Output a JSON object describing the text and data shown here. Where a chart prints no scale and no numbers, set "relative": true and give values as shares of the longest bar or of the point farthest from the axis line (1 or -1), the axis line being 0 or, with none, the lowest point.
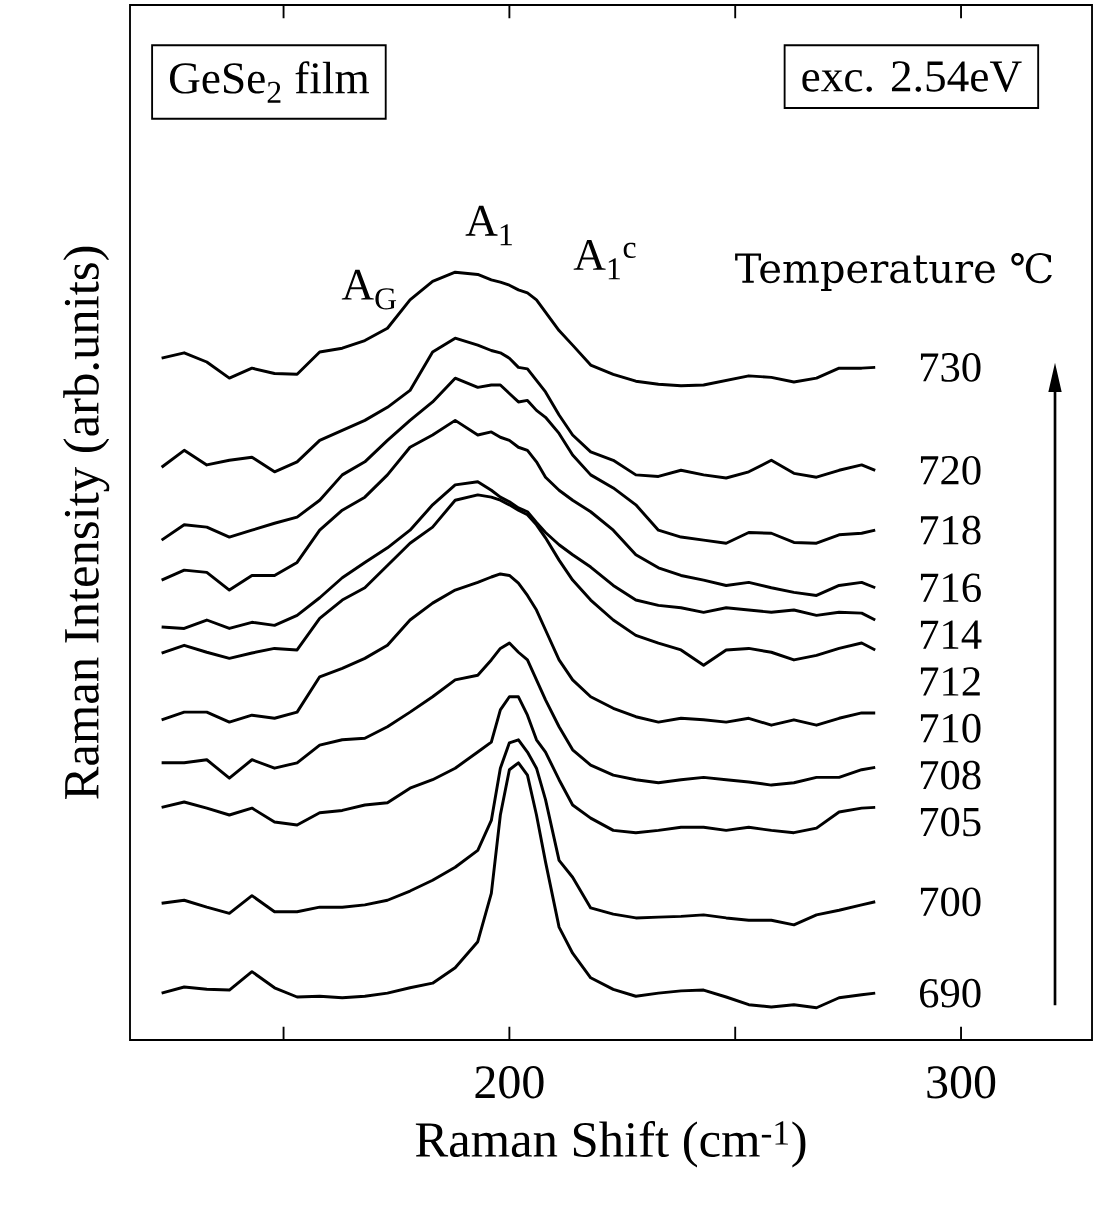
{
  "chart_data": {
    "type": "line",
    "relative": true,
    "xlabel": "Raman Shift (cm$^{-1}$)",
    "ylabel": "Raman Intensity (arb.units)",
    "legend_title": "Temperature ℃",
    "line_style": "solid",
    "xlim": [
      116,
      329
    ],
    "xticks": [
      {
        "value": 150,
        "label": null
      },
      200,
      {
        "value": 250,
        "label": null
      },
      300
    ],
    "annotations": [
      "GeSe$_{2}$ film",
      "exc. 2.54eV",
      "A$_{G}$",
      "A$_{1}$",
      "A$_{1}$$^{c}$"
    ],
    "x": [
      123,
      128,
      133,
      138,
      143,
      148,
      153,
      158,
      163,
      168,
      173,
      178,
      183,
      188,
      193,
      196,
      198,
      200,
      202,
      204,
      206,
      208,
      211,
      214,
      218,
      223,
      228,
      233,
      238,
      243,
      248,
      253,
      258,
      263,
      268,
      273,
      278,
      281
    ],
    "series": [
      {
        "name": "730",
        "color": "#000000",
        "values": [
          0.888,
          0.895,
          0.883,
          0.862,
          0.875,
          0.868,
          0.867,
          0.896,
          0.901,
          0.911,
          0.927,
          0.964,
          0.988,
          1.0,
          0.997,
          0.99,
          0.987,
          0.983,
          0.977,
          0.973,
          0.964,
          0.948,
          0.924,
          0.905,
          0.879,
          0.867,
          0.858,
          0.854,
          0.852,
          0.853,
          0.859,
          0.865,
          0.863,
          0.857,
          0.862,
          0.875,
          0.875,
          0.876
        ]
      },
      {
        "name": "720",
        "color": "#000000",
        "values": [
          0.746,
          0.768,
          0.749,
          0.755,
          0.759,
          0.74,
          0.753,
          0.781,
          0.794,
          0.807,
          0.824,
          0.846,
          0.896,
          0.914,
          0.905,
          0.898,
          0.895,
          0.888,
          0.876,
          0.874,
          0.859,
          0.844,
          0.814,
          0.788,
          0.766,
          0.755,
          0.736,
          0.734,
          0.742,
          0.736,
          0.732,
          0.74,
          0.755,
          0.738,
          0.733,
          0.742,
          0.749,
          0.742
        ]
      },
      {
        "name": "718",
        "color": "#000000",
        "values": [
          0.651,
          0.671,
          0.668,
          0.655,
          0.664,
          0.673,
          0.681,
          0.703,
          0.736,
          0.753,
          0.781,
          0.807,
          0.831,
          0.862,
          0.85,
          0.853,
          0.853,
          0.842,
          0.831,
          0.833,
          0.82,
          0.811,
          0.79,
          0.762,
          0.736,
          0.719,
          0.697,
          0.664,
          0.655,
          0.651,
          0.647,
          0.661,
          0.66,
          0.648,
          0.647,
          0.658,
          0.66,
          0.664
        ]
      },
      {
        "name": "716",
        "color": "#000000",
        "values": [
          0.599,
          0.612,
          0.609,
          0.586,
          0.605,
          0.605,
          0.622,
          0.664,
          0.69,
          0.707,
          0.736,
          0.772,
          0.788,
          0.807,
          0.788,
          0.792,
          0.785,
          0.781,
          0.772,
          0.768,
          0.753,
          0.733,
          0.716,
          0.703,
          0.688,
          0.664,
          0.632,
          0.615,
          0.605,
          0.599,
          0.592,
          0.596,
          0.589,
          0.583,
          0.579,
          0.592,
          0.596,
          0.589
        ]
      },
      {
        "name": "714",
        "color": "#000000",
        "values": [
          0.538,
          0.536,
          0.547,
          0.536,
          0.544,
          0.54,
          0.553,
          0.576,
          0.602,
          0.622,
          0.641,
          0.664,
          0.697,
          0.723,
          0.727,
          0.716,
          0.707,
          0.701,
          0.693,
          0.688,
          0.674,
          0.661,
          0.645,
          0.632,
          0.616,
          0.592,
          0.573,
          0.566,
          0.563,
          0.557,
          0.563,
          0.56,
          0.557,
          0.56,
          0.553,
          0.557,
          0.556,
          0.547
        ]
      },
      {
        "name": "712",
        "color": "#000000",
        "values": [
          0.504,
          0.514,
          0.505,
          0.497,
          0.504,
          0.51,
          0.508,
          0.549,
          0.573,
          0.589,
          0.618,
          0.647,
          0.668,
          0.703,
          0.71,
          0.707,
          0.703,
          0.697,
          0.69,
          0.684,
          0.671,
          0.654,
          0.625,
          0.599,
          0.573,
          0.547,
          0.527,
          0.517,
          0.508,
          0.488,
          0.508,
          0.51,
          0.505,
          0.495,
          0.501,
          0.51,
          0.517,
          0.508
        ]
      },
      {
        "name": "710",
        "color": "#000000",
        "values": [
          0.417,
          0.427,
          0.427,
          0.414,
          0.423,
          0.419,
          0.427,
          0.473,
          0.484,
          0.497,
          0.514,
          0.547,
          0.569,
          0.586,
          0.596,
          0.603,
          0.607,
          0.605,
          0.595,
          0.579,
          0.56,
          0.534,
          0.495,
          0.469,
          0.447,
          0.432,
          0.421,
          0.414,
          0.419,
          0.417,
          0.414,
          0.419,
          0.41,
          0.417,
          0.41,
          0.419,
          0.426,
          0.426
        ]
      },
      {
        "name": "708",
        "color": "#000000",
        "values": [
          0.361,
          0.361,
          0.365,
          0.341,
          0.365,
          0.354,
          0.361,
          0.384,
          0.391,
          0.393,
          0.408,
          0.427,
          0.447,
          0.469,
          0.475,
          0.495,
          0.51,
          0.517,
          0.505,
          0.495,
          0.469,
          0.443,
          0.408,
          0.378,
          0.358,
          0.345,
          0.339,
          0.335,
          0.339,
          0.342,
          0.339,
          0.336,
          0.332,
          0.335,
          0.342,
          0.342,
          0.352,
          0.355
        ]
      },
      {
        "name": "705",
        "color": "#000000",
        "values": [
          0.303,
          0.31,
          0.302,
          0.293,
          0.302,
          0.284,
          0.28,
          0.296,
          0.299,
          0.306,
          0.309,
          0.328,
          0.339,
          0.354,
          0.375,
          0.388,
          0.43,
          0.447,
          0.447,
          0.423,
          0.391,
          0.375,
          0.339,
          0.306,
          0.289,
          0.273,
          0.27,
          0.273,
          0.277,
          0.277,
          0.273,
          0.277,
          0.273,
          0.27,
          0.276,
          0.297,
          0.302,
          0.303
        ]
      },
      {
        "name": "700",
        "color": "#000000",
        "values": [
          0.178,
          0.182,
          0.173,
          0.165,
          0.188,
          0.167,
          0.167,
          0.173,
          0.173,
          0.176,
          0.182,
          0.194,
          0.208,
          0.225,
          0.247,
          0.286,
          0.354,
          0.387,
          0.391,
          0.375,
          0.354,
          0.313,
          0.234,
          0.212,
          0.172,
          0.164,
          0.159,
          0.16,
          0.161,
          0.163,
          0.159,
          0.156,
          0.156,
          0.15,
          0.163,
          0.169,
          0.176,
          0.18
        ]
      },
      {
        "name": "690",
        "color": "#000000",
        "values": [
          0.061,
          0.069,
          0.066,
          0.065,
          0.089,
          0.068,
          0.056,
          0.057,
          0.055,
          0.057,
          0.061,
          0.068,
          0.074,
          0.094,
          0.128,
          0.191,
          0.293,
          0.352,
          0.361,
          0.345,
          0.293,
          0.232,
          0.147,
          0.113,
          0.081,
          0.066,
          0.057,
          0.061,
          0.064,
          0.065,
          0.056,
          0.046,
          0.043,
          0.046,
          0.042,
          0.055,
          0.059,
          0.061
        ]
      }
    ]
  }
}
